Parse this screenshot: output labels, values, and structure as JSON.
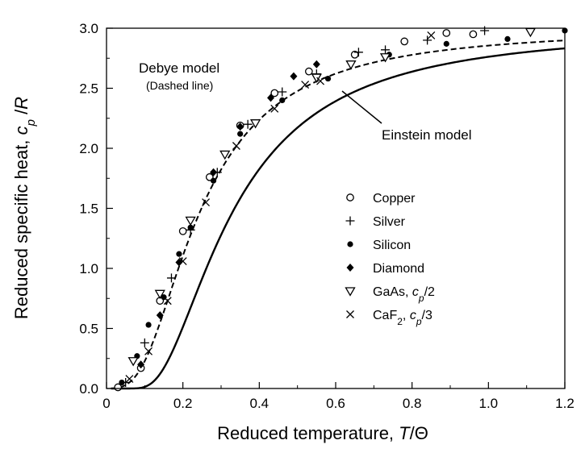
{
  "chart_data": {
    "type": "scatter",
    "xlabel": "Reduced temperature, T/Θ",
    "ylabel": "Reduced specific heat, cp/R",
    "xlabel_parts": [
      "Reduced temperature, ",
      "T",
      "/Θ"
    ],
    "ylabel_parts": [
      "Reduced specific heat, ",
      "c",
      "p",
      " /",
      "R"
    ],
    "xlim": [
      0,
      1.2
    ],
    "ylim": [
      0,
      3.0
    ],
    "x_ticks": [
      "0",
      "0.2",
      "0.4",
      "0.6",
      "0.8",
      "1.0",
      "1.2"
    ],
    "y_ticks": [
      "0.0",
      "0.5",
      "1.0",
      "1.5",
      "2.0",
      "2.5",
      "3.0"
    ],
    "grid": false,
    "legend_position": "right",
    "annotations": {
      "debye_title": "Debye model",
      "debye_sub": "(Dashed line)",
      "einstein": "Einstein model"
    },
    "curves": [
      {
        "name": "Debye model",
        "style": "dashed"
      },
      {
        "name": "Einstein model",
        "style": "solid"
      }
    ],
    "series": [
      {
        "name": "Copper",
        "label": "Copper",
        "marker": "circle-open",
        "points": [
          [
            0.03,
            0.01
          ],
          [
            0.09,
            0.17
          ],
          [
            0.14,
            0.73
          ],
          [
            0.2,
            1.31
          ],
          [
            0.27,
            1.76
          ],
          [
            0.35,
            2.19
          ],
          [
            0.44,
            2.46
          ],
          [
            0.53,
            2.64
          ],
          [
            0.65,
            2.78
          ],
          [
            0.78,
            2.89
          ],
          [
            0.89,
            2.96
          ],
          [
            0.96,
            2.95
          ]
        ]
      },
      {
        "name": "Silver",
        "label": "Silver",
        "marker": "plus",
        "points": [
          [
            0.05,
            0.05
          ],
          [
            0.1,
            0.38
          ],
          [
            0.17,
            0.92
          ],
          [
            0.22,
            1.32
          ],
          [
            0.29,
            1.8
          ],
          [
            0.37,
            2.2
          ],
          [
            0.46,
            2.47
          ],
          [
            0.55,
            2.62
          ],
          [
            0.66,
            2.8
          ],
          [
            0.73,
            2.82
          ],
          [
            0.84,
            2.9
          ],
          [
            0.99,
            2.98
          ]
        ]
      },
      {
        "name": "Silicon",
        "label": "Silicon",
        "marker": "circle-filled",
        "points": [
          [
            0.04,
            0.05
          ],
          [
            0.08,
            0.27
          ],
          [
            0.11,
            0.53
          ],
          [
            0.15,
            0.76
          ],
          [
            0.19,
            1.12
          ],
          [
            0.22,
            1.34
          ],
          [
            0.28,
            1.73
          ],
          [
            0.35,
            2.12
          ],
          [
            0.46,
            2.4
          ],
          [
            0.58,
            2.58
          ],
          [
            0.74,
            2.78
          ],
          [
            0.89,
            2.87
          ],
          [
            1.05,
            2.91
          ],
          [
            1.2,
            2.98
          ]
        ]
      },
      {
        "name": "Diamond",
        "label": "Diamond",
        "marker": "diamond-filled",
        "points": [
          [
            0.09,
            0.2
          ],
          [
            0.14,
            0.61
          ],
          [
            0.19,
            1.05
          ],
          [
            0.28,
            1.8
          ],
          [
            0.35,
            2.18
          ],
          [
            0.43,
            2.42
          ],
          [
            0.49,
            2.6
          ],
          [
            0.55,
            2.7
          ]
        ]
      },
      {
        "name": "GaAs",
        "label_parts": [
          "GaAs, ",
          "c",
          "p",
          "/2"
        ],
        "marker": "triangle-down-open",
        "points": [
          [
            0.07,
            0.23
          ],
          [
            0.14,
            0.79
          ],
          [
            0.22,
            1.4
          ],
          [
            0.31,
            1.95
          ],
          [
            0.39,
            2.21
          ],
          [
            0.55,
            2.59
          ],
          [
            0.64,
            2.7
          ],
          [
            0.73,
            2.76
          ],
          [
            1.11,
            2.97
          ]
        ]
      },
      {
        "name": "CaF2",
        "label_parts": [
          "CaF",
          "2",
          ", ",
          "c",
          "p",
          "/3"
        ],
        "marker": "x",
        "points": [
          [
            0.06,
            0.08
          ],
          [
            0.11,
            0.31
          ],
          [
            0.16,
            0.73
          ],
          [
            0.2,
            1.06
          ],
          [
            0.26,
            1.55
          ],
          [
            0.34,
            2.02
          ],
          [
            0.44,
            2.33
          ],
          [
            0.52,
            2.53
          ],
          [
            0.56,
            2.56
          ],
          [
            0.85,
            2.94
          ]
        ]
      }
    ]
  }
}
